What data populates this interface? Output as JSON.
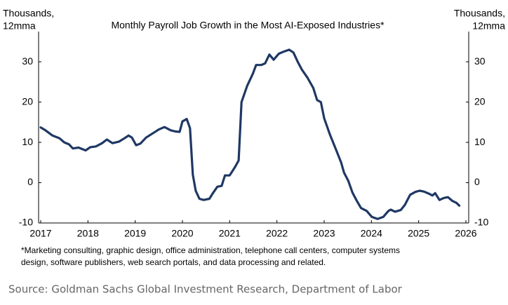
{
  "chart_data": {
    "type": "line",
    "title": "Monthly Payroll Job Growth in the Most AI-Exposed Industries*",
    "y_label": [
      "Thousands,",
      "12mma"
    ],
    "y2_label": [
      "Thousands,",
      "12mma"
    ],
    "footnote": [
      "*Marketing consulting, graphic design, office administration, telephone call centers, computer systems",
      "design, software publishers, web search portals, and data processing and related."
    ],
    "source": "Source: Goldman Sachs Global Investment Research, Department of Labor",
    "xlim": [
      2017,
      2026
    ],
    "xticks": [
      2017,
      2018,
      2019,
      2020,
      2021,
      2022,
      2023,
      2024,
      2025,
      2026
    ],
    "ylim": [
      -10,
      37.5
    ],
    "yticks": [
      -10,
      0,
      10,
      20,
      30
    ],
    "y2lim": [
      -10,
      37.5
    ],
    "y2ticks": [
      -10,
      0,
      10,
      20,
      30
    ],
    "grid": false,
    "x": [
      2017.0,
      2017.1,
      2017.25,
      2017.4,
      2017.5,
      2017.6,
      2017.68,
      2017.8,
      2017.95,
      2018.05,
      2018.17,
      2018.3,
      2018.4,
      2018.52,
      2018.66,
      2018.77,
      2018.86,
      2018.93,
      2019.02,
      2019.11,
      2019.23,
      2019.38,
      2019.5,
      2019.62,
      2019.75,
      2019.85,
      2019.94,
      2020.0,
      2020.09,
      2020.16,
      2020.22,
      2020.28,
      2020.36,
      2020.45,
      2020.57,
      2020.65,
      2020.74,
      2020.83,
      2020.9,
      2021.0,
      2021.12,
      2021.19,
      2021.25,
      2021.37,
      2021.49,
      2021.56,
      2021.67,
      2021.75,
      2021.84,
      2021.93,
      2022.04,
      2022.14,
      2022.26,
      2022.35,
      2022.44,
      2022.53,
      2022.65,
      2022.77,
      2022.85,
      2022.93,
      2023.0,
      2023.12,
      2023.24,
      2023.36,
      2023.42,
      2023.51,
      2023.6,
      2023.69,
      2023.78,
      2023.9,
      2024.01,
      2024.13,
      2024.25,
      2024.36,
      2024.41,
      2024.5,
      2024.62,
      2024.71,
      2024.82,
      2024.93,
      2025.02,
      2025.11,
      2025.23,
      2025.29,
      2025.35,
      2025.44,
      2025.53,
      2025.62,
      2025.71,
      2025.8,
      2025.86
    ],
    "series": [
      {
        "name": "AI-exposed industries",
        "color": "#1f3864",
        "values": [
          13.7,
          13.0,
          11.7,
          11.0,
          10.0,
          9.5,
          8.5,
          8.7,
          8.0,
          8.8,
          9.0,
          9.8,
          10.7,
          9.8,
          10.2,
          11.0,
          11.7,
          11.2,
          9.3,
          9.7,
          11.2,
          12.3,
          13.2,
          13.8,
          13.0,
          12.7,
          12.6,
          15.2,
          15.8,
          13.5,
          2.0,
          -2.0,
          -4.0,
          -4.3,
          -4.0,
          -2.5,
          -1.0,
          -0.8,
          1.8,
          1.8,
          4.0,
          5.5,
          20.0,
          24.0,
          27.0,
          29.2,
          29.2,
          29.6,
          31.8,
          30.5,
          32.0,
          32.5,
          33.0,
          32.3,
          30.0,
          28.0,
          26.0,
          23.5,
          20.5,
          20.0,
          16.0,
          12.0,
          8.5,
          5.0,
          2.5,
          0.5,
          -2.5,
          -4.5,
          -6.3,
          -7.0,
          -8.5,
          -9.0,
          -8.5,
          -7.0,
          -6.7,
          -7.2,
          -6.8,
          -5.5,
          -3.0,
          -2.3,
          -2.0,
          -2.2,
          -2.8,
          -3.2,
          -2.6,
          -4.3,
          -3.8,
          -3.6,
          -4.5,
          -5.0,
          -5.7
        ]
      }
    ]
  }
}
